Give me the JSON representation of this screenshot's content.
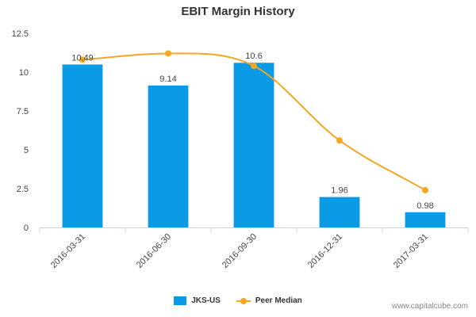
{
  "chart_data": {
    "type": "bar",
    "title": "EBIT Margin History",
    "categories": [
      "2016-03-31",
      "2016-06-30",
      "2016-09-30",
      "2016-12-31",
      "2017-03-31"
    ],
    "series": [
      {
        "name": "JKS-US",
        "type": "bar",
        "color": "#0b9be6",
        "values": [
          10.49,
          9.14,
          10.6,
          1.96,
          0.98
        ],
        "labels": [
          "10.49",
          "9.14",
          "10.6",
          "1.96",
          "0.98"
        ]
      },
      {
        "name": "Peer Median",
        "type": "line",
        "color": "#f5a623",
        "values": [
          10.8,
          11.2,
          10.4,
          5.6,
          2.4
        ]
      }
    ],
    "ylim": [
      0,
      12.5
    ],
    "yticks": [
      "0",
      "2.5",
      "5",
      "7.5",
      "10",
      "12.5"
    ],
    "xlabel": "",
    "ylabel": "",
    "legend": "bottom-center"
  },
  "watermark": "www.capitalcube.com"
}
